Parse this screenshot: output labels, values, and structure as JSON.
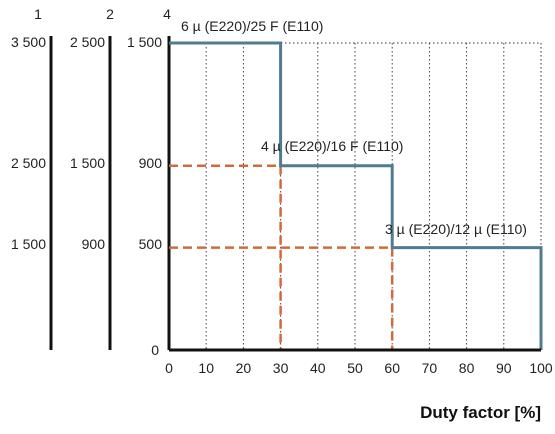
{
  "chart_data": {
    "type": "line",
    "x": {
      "label": "Duty factor [%]",
      "min": 0,
      "max": 100,
      "ticks": [
        0,
        10,
        20,
        30,
        40,
        50,
        60,
        70,
        80,
        90,
        100
      ]
    },
    "y_axes": [
      {
        "name": "1",
        "labels": [
          "3 500",
          "2 500",
          "1 500"
        ]
      },
      {
        "name": "2",
        "labels": [
          "2 500",
          "1 500",
          "900"
        ]
      },
      {
        "name": "4",
        "labels": [
          "1 500",
          "900",
          "500",
          "0"
        ],
        "values": [
          1500,
          900,
          500,
          0
        ],
        "min": 0,
        "max": 1500
      }
    ],
    "step_series": {
      "color": "#4f7c92",
      "steps": [
        {
          "x_start": 0,
          "x_end": 30,
          "y": 1500,
          "label": "6 µ (E220)/25 F (E110)"
        },
        {
          "x_start": 30,
          "x_end": 60,
          "y": 900,
          "label": "4 µ (E220)/16 F (E110)"
        },
        {
          "x_start": 60,
          "x_end": 100,
          "y": 500,
          "label": "3 µ (E220)/12 µ (E110)"
        }
      ]
    },
    "dashed_guides": {
      "color": "#d46a3c",
      "points": [
        {
          "x": 30,
          "y": 900
        },
        {
          "x": 60,
          "y": 500
        }
      ]
    },
    "grid": "dotted"
  }
}
